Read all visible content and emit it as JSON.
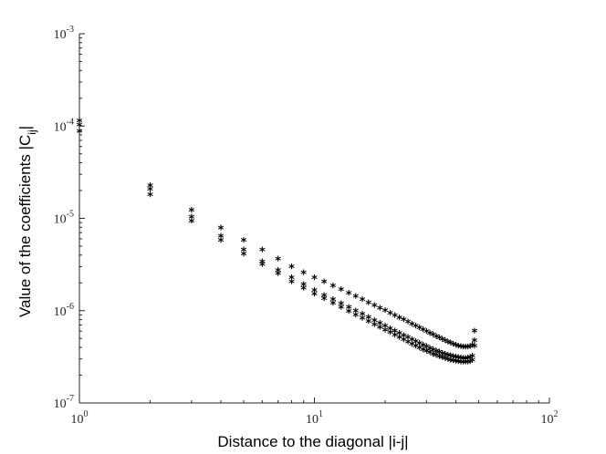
{
  "chart_data": {
    "type": "scatter",
    "title": "",
    "xlabel": "Distance to the diagonal |i-j|",
    "ylabel_main": "Value of the coefficients |C",
    "ylabel_sub": "ij",
    "ylabel_end": "|",
    "xscale": "log",
    "yscale": "log",
    "xlim": [
      1,
      100
    ],
    "ylim": [
      1e-07,
      0.001
    ],
    "grid": false,
    "marker": "*",
    "marker_color": "#000000",
    "xticks": [
      {
        "value": 1,
        "base": "10",
        "exp": "0"
      },
      {
        "value": 10,
        "base": "10",
        "exp": "1"
      },
      {
        "value": 100,
        "base": "10",
        "exp": "2"
      }
    ],
    "yticks": [
      {
        "value": 1e-07,
        "base": "10",
        "exp": "-7"
      },
      {
        "value": 1e-06,
        "base": "10",
        "exp": "-6"
      },
      {
        "value": 1e-05,
        "base": "10",
        "exp": "-5"
      },
      {
        "value": 0.0001,
        "base": "10",
        "exp": "-4"
      },
      {
        "value": 0.001,
        "base": "10",
        "exp": "-3"
      }
    ],
    "series": [
      {
        "x": [
          1,
          2,
          3,
          4,
          5,
          6,
          7,
          8,
          9,
          10,
          11,
          12,
          13,
          14,
          15,
          16,
          17,
          18,
          19,
          20,
          21,
          22,
          23,
          24,
          25,
          26,
          27,
          28,
          29,
          30,
          31,
          32,
          33,
          34,
          35,
          36,
          37,
          38,
          39,
          40,
          41,
          42,
          43,
          44,
          45,
          46,
          47,
          48
        ],
        "y": [
          0.00011,
          2.2e-05,
          1.18e-05,
          7.6e-06,
          5.6e-06,
          4.4e-06,
          3.5e-06,
          2.9e-06,
          2.5e-06,
          2.2e-06,
          1.98e-06,
          1.8e-06,
          1.64e-06,
          1.5e-06,
          1.38e-06,
          1.27e-06,
          1.18e-06,
          1.1e-06,
          1.03e-06,
          9.7e-07,
          9.1e-07,
          8.6e-07,
          8.1e-07,
          7.7e-07,
          7.3e-07,
          6.9e-07,
          6.6e-07,
          6.3e-07,
          6e-07,
          5.75e-07,
          5.5e-07,
          5.3e-07,
          5.1e-07,
          4.9e-07,
          4.75e-07,
          4.6e-07,
          4.45e-07,
          4.32e-07,
          4.2e-07,
          4.1e-07,
          4e-07,
          3.95e-07,
          3.9e-07,
          3.9e-07,
          3.9e-07,
          3.95e-07,
          4.1e-07,
          5.8e-07
        ]
      },
      {
        "x": [
          1,
          2,
          3,
          4,
          5,
          6,
          7,
          8,
          9,
          10,
          11,
          12,
          13,
          14,
          15,
          16,
          17,
          18,
          19,
          20,
          21,
          22,
          23,
          24,
          25,
          26,
          27,
          28,
          29,
          30,
          31,
          32,
          33,
          34,
          35,
          36,
          37,
          38,
          39,
          40,
          41,
          42,
          43,
          44,
          45,
          46,
          47,
          48
        ],
        "y": [
          0.0001,
          2e-05,
          1e-05,
          6.2e-06,
          4.4e-06,
          3.3e-06,
          2.65e-06,
          2.2e-06,
          1.85e-06,
          1.6e-06,
          1.42e-06,
          1.27e-06,
          1.15e-06,
          1.05e-06,
          9.6e-07,
          8.9e-07,
          8.2e-07,
          7.6e-07,
          7.1e-07,
          6.6e-07,
          6.2e-07,
          5.85e-07,
          5.5e-07,
          5.2e-07,
          4.95e-07,
          4.7e-07,
          4.5e-07,
          4.3e-07,
          4.1e-07,
          3.95e-07,
          3.8e-07,
          3.67e-07,
          3.55e-07,
          3.45e-07,
          3.35e-07,
          3.27e-07,
          3.2e-07,
          3.14e-07,
          3.08e-07,
          3.04e-07,
          3e-07,
          2.98e-07,
          2.96e-07,
          2.96e-07,
          2.97e-07,
          3e-07,
          3.1e-07,
          4.6e-07
        ]
      },
      {
        "x": [
          1,
          2,
          3,
          4,
          5,
          6,
          7,
          8,
          9,
          10,
          11,
          12,
          13,
          14,
          15,
          16,
          17,
          18,
          19,
          20,
          21,
          22,
          23,
          24,
          25,
          26,
          27,
          28,
          29,
          30,
          31,
          32,
          33,
          34,
          35,
          36,
          37,
          38,
          39,
          40,
          41,
          42,
          43,
          44,
          45,
          46,
          47,
          48
        ],
        "y": [
          8.5e-05,
          1.75e-05,
          9e-06,
          5.6e-06,
          4e-06,
          3.05e-06,
          2.45e-06,
          2e-06,
          1.7e-06,
          1.47e-06,
          1.3e-06,
          1.16e-06,
          1.05e-06,
          9.5e-07,
          8.7e-07,
          8e-07,
          7.4e-07,
          6.85e-07,
          6.4e-07,
          5.95e-07,
          5.6e-07,
          5.25e-07,
          4.95e-07,
          4.7e-07,
          4.45e-07,
          4.2e-07,
          4e-07,
          3.82e-07,
          3.66e-07,
          3.52e-07,
          3.4e-07,
          3.28e-07,
          3.18e-07,
          3.08e-07,
          3e-07,
          2.93e-07,
          2.87e-07,
          2.82e-07,
          2.78e-07,
          2.75e-07,
          2.72e-07,
          2.7e-07,
          2.69e-07,
          2.69e-07,
          2.7e-07,
          2.72e-07,
          2.8e-07,
          4e-07
        ]
      }
    ]
  }
}
